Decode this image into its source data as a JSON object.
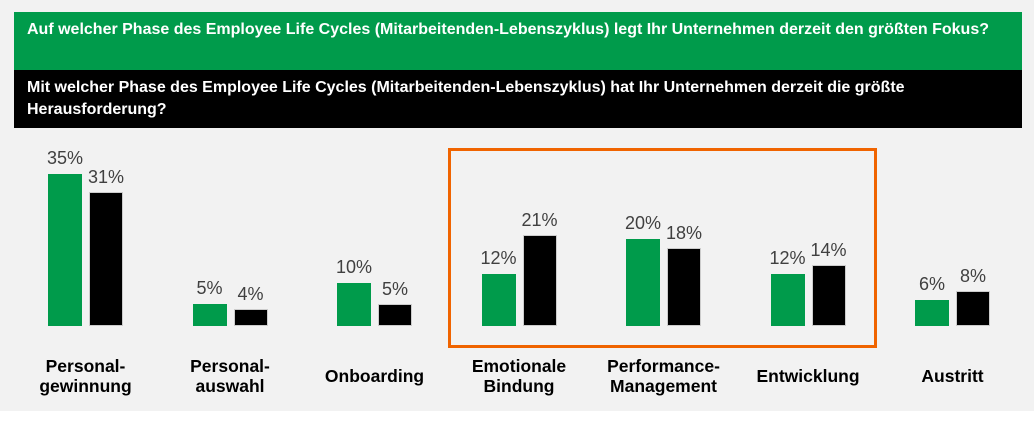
{
  "colors": {
    "panel_background": "#F2F2F2",
    "focus_green": "#009B4B",
    "challenge_black": "#000000",
    "highlight_orange": "#F06400",
    "value_label_gray": "#404040"
  },
  "banners": [
    {
      "id": "focus",
      "text": "Auf welcher Phase des Employee Life Cycles (Mitarbeitenden-Lebenszyklus) legt Ihr Unternehmen derzeit den größten Fokus?",
      "background": "#009B4B",
      "text_color": "#FFFFFF"
    },
    {
      "id": "challenge",
      "text": "Mit welcher Phase des Employee Life Cycles (Mitarbeitenden-Lebenszyklus) hat Ihr Unternehmen derzeit die größte Herausforderung?",
      "background": "#000000",
      "text_color": "#FFFFFF"
    }
  ],
  "chart_data": {
    "type": "bar",
    "categories": [
      [
        "Personal-",
        "gewinnung"
      ],
      [
        "Personal-",
        "auswahl"
      ],
      [
        "Onboarding"
      ],
      [
        "Emotionale",
        "Bindung"
      ],
      [
        "Performance-",
        "Management"
      ],
      [
        "Entwicklung"
      ],
      [
        "Austritt"
      ]
    ],
    "series": [
      {
        "name": "Fokus",
        "color": "#009B4B",
        "values": [
          35,
          5,
          10,
          12,
          20,
          12,
          6
        ]
      },
      {
        "name": "Herausforderung",
        "color": "#000000",
        "values": [
          31,
          4,
          5,
          21,
          18,
          14,
          8
        ]
      }
    ],
    "value_suffix": "%",
    "value_labels": "outside-end",
    "ylim": [
      0,
      40
    ],
    "grid": false,
    "axes_visible": false,
    "legend": "none",
    "highlight": {
      "categories": [
        "Emotionale Bindung",
        "Performance-Management",
        "Entwicklung"
      ],
      "style": "orange outline box",
      "color": "#F06400"
    }
  }
}
